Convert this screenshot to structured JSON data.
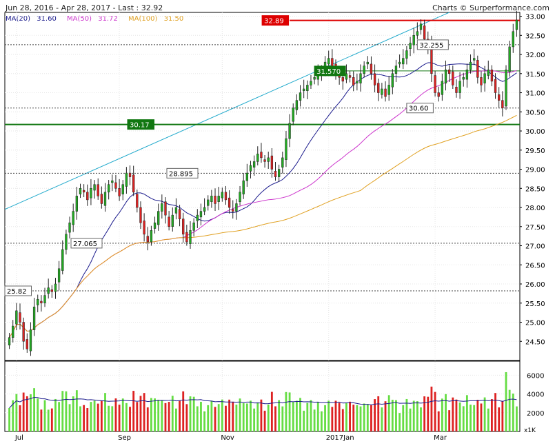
{
  "header": {
    "range": "Jun 28, 2016 - Apr 28, 2017 - Last : 32.92",
    "source": "Charts © Surperformance.com"
  },
  "legend": {
    "ma20": "MA(20)",
    "ma20_val": "31.60",
    "ma50": "MA(50)",
    "ma50_val": "31.72",
    "ma100": "MA(100)",
    "ma100_val": "31.50"
  },
  "colors": {
    "up": "#22aa22",
    "down": "#dd2222",
    "ma20": "#1a1a8c",
    "ma50": "#cc33cc",
    "ma100": "#e0a020",
    "trend": "#22aacc",
    "support": "#117711",
    "resistance": "#dd0000",
    "volume_up": "#66dd44",
    "volume_down": "#dd2222",
    "volume_avg": "#1a1a8c"
  },
  "chart_data": {
    "type": "candlestick",
    "price_axis": {
      "min": 24.0,
      "max": 33.1,
      "ticks": [
        "24.50",
        "25.00",
        "25.50",
        "26.00",
        "26.50",
        "27.00",
        "27.50",
        "28.00",
        "28.50",
        "29.00",
        "29.50",
        "30.00",
        "30.50",
        "31.00",
        "31.50",
        "32.00",
        "32.50",
        "33.00"
      ]
    },
    "volume_axis": {
      "min": 0,
      "max": 7500,
      "ticks": [
        "2000",
        "4000",
        "6000"
      ],
      "unit": "x1K"
    },
    "x_ticks": [
      "Jul",
      "Sep",
      "Nov",
      "2017Jan",
      "Mar"
    ],
    "levels": [
      {
        "label": "32.89",
        "value": 32.89,
        "style": "resistance"
      },
      {
        "label": "32.255",
        "value": 32.255,
        "style": "dashed"
      },
      {
        "label": "31.570",
        "value": 31.57,
        "style": "support-tag"
      },
      {
        "label": "30.60",
        "value": 30.6,
        "style": "dashed"
      },
      {
        "label": "30.17",
        "value": 30.17,
        "style": "support"
      },
      {
        "label": "28.895",
        "value": 28.895,
        "style": "dashed"
      },
      {
        "label": "27.065",
        "value": 27.065,
        "style": "dashed"
      },
      {
        "label": "25.82",
        "value": 25.82,
        "style": "dashed"
      }
    ],
    "closes": [
      24.6,
      24.9,
      25.3,
      25.0,
      24.5,
      24.3,
      24.8,
      25.4,
      25.6,
      25.5,
      25.7,
      25.9,
      25.8,
      26.0,
      26.4,
      26.9,
      27.3,
      27.6,
      27.9,
      28.3,
      28.5,
      28.4,
      28.2,
      28.5,
      28.6,
      28.3,
      28.1,
      28.4,
      28.6,
      28.7,
      28.5,
      28.3,
      28.6,
      28.9,
      28.8,
      28.4,
      28.0,
      27.6,
      27.3,
      27.1,
      27.4,
      27.6,
      27.9,
      28.1,
      27.8,
      27.5,
      27.8,
      28.0,
      27.7,
      27.3,
      27.1,
      27.4,
      27.6,
      27.8,
      27.9,
      28.0,
      28.2,
      28.3,
      28.1,
      28.3,
      28.4,
      28.2,
      28.0,
      27.9,
      28.1,
      28.4,
      28.7,
      28.9,
      29.1,
      29.2,
      29.4,
      29.3,
      29.2,
      29.3,
      29.0,
      28.8,
      29.0,
      29.3,
      29.8,
      30.2,
      30.6,
      30.8,
      31.0,
      31.1,
      31.2,
      31.3,
      31.4,
      31.5,
      31.6,
      31.8,
      31.9,
      31.7,
      31.5,
      31.4,
      31.3,
      31.5,
      31.4,
      31.2,
      31.3,
      31.5,
      31.7,
      31.8,
      31.5,
      31.2,
      31.0,
      31.1,
      30.9,
      31.2,
      31.5,
      31.7,
      31.8,
      31.9,
      32.1,
      32.3,
      32.5,
      32.6,
      32.8,
      32.4,
      32.2,
      31.5,
      31.0,
      30.9,
      31.3,
      31.6,
      31.5,
      31.2,
      31.0,
      31.3,
      31.4,
      31.6,
      31.8,
      31.9,
      31.4,
      31.2,
      31.5,
      31.6,
      31.3,
      31.0,
      30.8,
      30.6,
      31.6,
      32.2,
      32.6,
      32.9
    ]
  }
}
